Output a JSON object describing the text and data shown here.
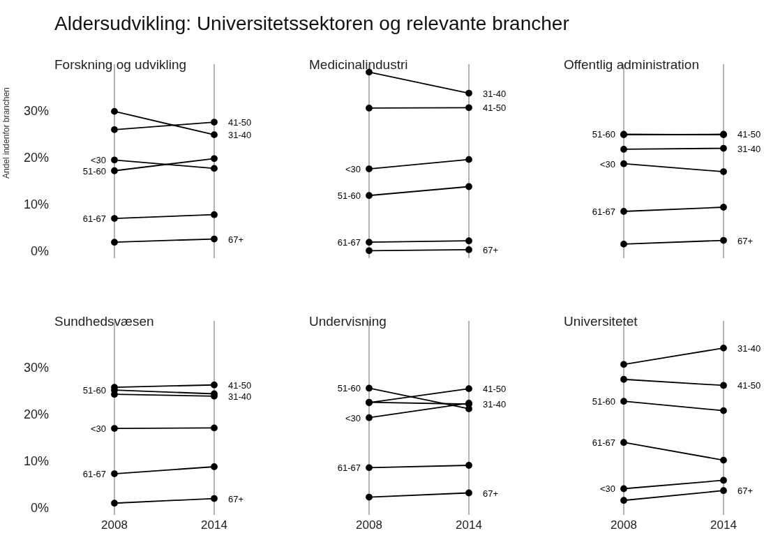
{
  "chart_data": [
    {
      "type": "other",
      "title": "Aldersudvikling: Universitetssektoren og relevante brancher"
    },
    {
      "type": "line",
      "title": "Forskning og udvikling",
      "ylabel": "Andel indenfor branchen",
      "categories": [
        "2008",
        "2014"
      ],
      "ylim": [
        -1.5,
        40
      ],
      "yticks": [
        {
          "value": 0,
          "label": "0%"
        },
        {
          "value": 10,
          "label": "10%"
        },
        {
          "value": 20,
          "label": "20%"
        },
        {
          "value": 30,
          "label": "30%"
        }
      ],
      "grid": "x",
      "marker": "circle",
      "tick_labels": "y",
      "series": [
        {
          "color": "#000000",
          "values": [
            19.5,
            17.7
          ]
        },
        {
          "color": "#000000",
          "values": [
            29.9,
            24.9
          ]
        },
        {
          "color": "#000000",
          "values": [
            26.0,
            27.6
          ]
        },
        {
          "color": "#000000",
          "values": [
            17.2,
            19.8
          ]
        },
        {
          "color": "#000000",
          "values": [
            7.0,
            7.8
          ]
        },
        {
          "color": "#000000",
          "values": [
            1.9,
            2.6
          ]
        }
      ],
      "annotations": [
        {
          "text": "<30",
          "x": "2008",
          "y": 19.5
        },
        {
          "text": "31-40",
          "x": "2014",
          "y": 24.9
        },
        {
          "text": "41-50",
          "x": "2014",
          "y": 27.6
        },
        {
          "text": "51-60",
          "x": "2008",
          "y": 17.2
        },
        {
          "text": "61-67",
          "x": "2008",
          "y": 7.0
        },
        {
          "text": "67+",
          "x": "2014",
          "y": 2.6
        }
      ]
    },
    {
      "type": "line",
      "title": "Medicinalindustri",
      "categories": [
        "2008",
        "2014"
      ],
      "ylim": [
        -1.5,
        40
      ],
      "grid": "x",
      "marker": "circle",
      "tick_labels": false,
      "series": [
        {
          "color": "#000000",
          "values": [
            17.6,
            19.6
          ]
        },
        {
          "color": "#000000",
          "values": [
            38.3,
            33.8
          ]
        },
        {
          "color": "#000000",
          "values": [
            30.6,
            30.7
          ]
        },
        {
          "color": "#000000",
          "values": [
            11.9,
            13.8
          ]
        },
        {
          "color": "#000000",
          "values": [
            1.9,
            2.2
          ]
        },
        {
          "color": "#000000",
          "values": [
            0.1,
            0.3
          ]
        }
      ],
      "annotations": [
        {
          "text": "<30",
          "x": "2008",
          "y": 17.6
        },
        {
          "text": "31-40",
          "x": "2014",
          "y": 33.8
        },
        {
          "text": "41-50",
          "x": "2014",
          "y": 30.7
        },
        {
          "text": "51-60",
          "x": "2008",
          "y": 11.9
        },
        {
          "text": "61-67",
          "x": "2008",
          "y": 1.9
        },
        {
          "text": "67+",
          "x": "2014",
          "y": 0.3
        }
      ]
    },
    {
      "type": "line",
      "title": "Offentlig administration",
      "categories": [
        "2008",
        "2014"
      ],
      "ylim": [
        -1.5,
        40
      ],
      "grid": "x",
      "marker": "circle",
      "tick_labels": false,
      "series": [
        {
          "color": "#000000",
          "values": [
            18.7,
            17.0
          ]
        },
        {
          "color": "#000000",
          "values": [
            21.8,
            22.0
          ]
        },
        {
          "color": "#000000",
          "values": [
            24.9,
            25.0
          ]
        },
        {
          "color": "#000000",
          "values": [
            25.0,
            24.9
          ]
        },
        {
          "color": "#000000",
          "values": [
            8.5,
            9.4
          ]
        },
        {
          "color": "#000000",
          "values": [
            1.5,
            2.3
          ]
        }
      ],
      "annotations": [
        {
          "text": "<30",
          "x": "2008",
          "y": 18.7
        },
        {
          "text": "31-40",
          "x": "2014",
          "y": 22.0
        },
        {
          "text": "41-50",
          "x": "2014",
          "y": 25.0
        },
        {
          "text": "51-60",
          "x": "2008",
          "y": 25.0
        },
        {
          "text": "61-67",
          "x": "2008",
          "y": 8.5
        },
        {
          "text": "67+",
          "x": "2014",
          "y": 2.3
        }
      ]
    },
    {
      "type": "line",
      "title": "Sundhedsvæsen",
      "categories": [
        "2008",
        "2014"
      ],
      "ylim": [
        -1.5,
        40
      ],
      "yticks": [
        {
          "value": 0,
          "label": "0%"
        },
        {
          "value": 10,
          "label": "10%"
        },
        {
          "value": 20,
          "label": "20%"
        },
        {
          "value": 30,
          "label": "30%"
        }
      ],
      "grid": "x",
      "marker": "circle",
      "series": [
        {
          "color": "#000000",
          "values": [
            17.0,
            17.1
          ]
        },
        {
          "color": "#000000",
          "values": [
            24.3,
            23.9
          ]
        },
        {
          "color": "#000000",
          "values": [
            25.8,
            26.3
          ]
        },
        {
          "color": "#000000",
          "values": [
            25.2,
            24.4
          ]
        },
        {
          "color": "#000000",
          "values": [
            7.3,
            8.8
          ]
        },
        {
          "color": "#000000",
          "values": [
            1.0,
            2.0
          ]
        }
      ],
      "annotations": [
        {
          "text": "<30",
          "x": "2008",
          "y": 17.0
        },
        {
          "text": "31-40",
          "x": "2014",
          "y": 23.9
        },
        {
          "text": "41-50",
          "x": "2014",
          "y": 26.3
        },
        {
          "text": "51-60",
          "x": "2008",
          "y": 25.2
        },
        {
          "text": "61-67",
          "x": "2008",
          "y": 7.3
        },
        {
          "text": "67+",
          "x": "2014",
          "y": 2.0
        }
      ]
    },
    {
      "type": "line",
      "title": "Undervisning",
      "categories": [
        "2008",
        "2014"
      ],
      "ylim": [
        -1.5,
        40
      ],
      "grid": "x",
      "marker": "circle",
      "tick_labels": "x",
      "series": [
        {
          "color": "#000000",
          "values": [
            19.3,
            22.4
          ]
        },
        {
          "color": "#000000",
          "values": [
            22.6,
            22.2
          ]
        },
        {
          "color": "#000000",
          "values": [
            22.5,
            25.5
          ]
        },
        {
          "color": "#000000",
          "values": [
            25.6,
            21.2
          ]
        },
        {
          "color": "#000000",
          "values": [
            8.6,
            9.1
          ]
        },
        {
          "color": "#000000",
          "values": [
            2.3,
            3.2
          ]
        }
      ],
      "annotations": [
        {
          "text": "<30",
          "x": "2008",
          "y": 19.3
        },
        {
          "text": "31-40",
          "x": "2014",
          "y": 22.2
        },
        {
          "text": "41-50",
          "x": "2014",
          "y": 25.5
        },
        {
          "text": "51-60",
          "x": "2008",
          "y": 25.6
        },
        {
          "text": "61-67",
          "x": "2008",
          "y": 8.6
        },
        {
          "text": "67+",
          "x": "2014",
          "y": 3.2
        }
      ]
    },
    {
      "type": "line",
      "title": "Universitetet",
      "categories": [
        "2008",
        "2014"
      ],
      "ylim": [
        -1.5,
        40
      ],
      "grid": "x",
      "marker": "circle",
      "tick_labels": "x",
      "series": [
        {
          "color": "#000000",
          "values": [
            4.1,
            5.9
          ]
        },
        {
          "color": "#000000",
          "values": [
            30.7,
            34.2
          ]
        },
        {
          "color": "#000000",
          "values": [
            27.5,
            26.2
          ]
        },
        {
          "color": "#000000",
          "values": [
            22.8,
            20.8
          ]
        },
        {
          "color": "#000000",
          "values": [
            14.0,
            10.2
          ]
        },
        {
          "color": "#000000",
          "values": [
            1.6,
            3.7
          ]
        }
      ],
      "annotations": [
        {
          "text": "<30",
          "x": "2008",
          "y": 4.1
        },
        {
          "text": "31-40",
          "x": "2014",
          "y": 34.2
        },
        {
          "text": "41-50",
          "x": "2014",
          "y": 26.2
        },
        {
          "text": "51-60",
          "x": "2008",
          "y": 22.8
        },
        {
          "text": "61-67",
          "x": "2008",
          "y": 14.0
        },
        {
          "text": "67+",
          "x": "2014",
          "y": 3.7
        }
      ]
    }
  ]
}
